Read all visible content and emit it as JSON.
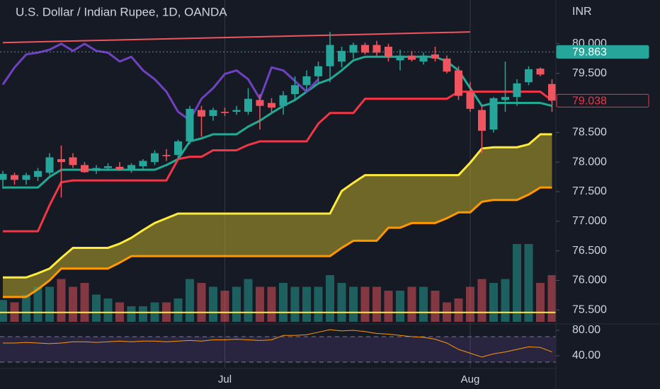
{
  "chart_data": {
    "type": "candlestick",
    "title": "U.S. Dollar / Indian Rupee, 1D, OANDA",
    "y_axis_label": "INR",
    "categories": [
      null,
      null,
      null,
      null,
      null,
      null,
      null,
      null,
      null,
      null,
      null,
      null,
      null,
      null,
      null,
      null,
      null,
      null,
      null,
      "Jul",
      null,
      null,
      null,
      null,
      null,
      null,
      null,
      null,
      null,
      null,
      null,
      null,
      null,
      null,
      null,
      null,
      null,
      null,
      null,
      null,
      "Aug",
      null,
      null,
      null,
      null,
      null,
      null,
      null
    ],
    "open": [
      77.7,
      77.78,
      77.7,
      77.75,
      77.82,
      78.05,
      78.08,
      77.95,
      77.85,
      77.9,
      77.92,
      77.88,
      77.93,
      78.0,
      78.12,
      78.12,
      78.35,
      78.88,
      78.78,
      78.85,
      78.85,
      78.85,
      79.05,
      79.0,
      78.95,
      79.15,
      79.3,
      79.45,
      79.62,
      79.7,
      79.85,
      79.98,
      79.98,
      79.95,
      79.72,
      79.8,
      79.7,
      79.82,
      79.75,
      79.55,
      79.18,
      78.88,
      78.55,
      79.05,
      79.1,
      79.35,
      79.58,
      79.32
    ],
    "high": [
      77.85,
      77.82,
      77.82,
      77.9,
      78.15,
      78.28,
      78.15,
      78.0,
      77.95,
      77.98,
      78.0,
      77.98,
      78.05,
      78.2,
      78.22,
      78.38,
      78.95,
      78.95,
      78.92,
      78.92,
      78.95,
      79.25,
      79.15,
      79.08,
      79.2,
      79.45,
      79.55,
      79.7,
      80.2,
      79.95,
      80.02,
      80.02,
      80.05,
      80.0,
      79.9,
      79.88,
      79.85,
      79.95,
      79.8,
      79.62,
      79.35,
      78.95,
      79.1,
      79.7,
      79.4,
      79.62,
      79.6,
      79.4
    ],
    "low": [
      77.55,
      77.62,
      77.62,
      77.68,
      77.78,
      77.4,
      77.9,
      77.82,
      77.8,
      77.85,
      77.85,
      77.82,
      77.88,
      77.95,
      78.02,
      78.05,
      78.3,
      78.43,
      78.7,
      78.78,
      78.8,
      78.8,
      78.55,
      78.85,
      78.8,
      79.05,
      79.2,
      79.35,
      79.35,
      79.6,
      79.75,
      79.82,
      79.8,
      79.7,
      79.55,
      79.7,
      79.65,
      79.7,
      79.5,
      79.05,
      78.85,
      78.15,
      78.5,
      78.85,
      78.95,
      79.3,
      79.45,
      78.85
    ],
    "close": [
      77.8,
      77.7,
      77.78,
      77.85,
      78.08,
      78.0,
      77.95,
      77.83,
      77.9,
      77.93,
      77.88,
      77.95,
      78.02,
      78.15,
      78.1,
      78.35,
      78.9,
      78.77,
      78.88,
      78.83,
      78.88,
      79.07,
      78.95,
      78.92,
      79.13,
      79.3,
      79.45,
      79.62,
      79.98,
      79.88,
      79.98,
      79.85,
      79.85,
      79.78,
      79.8,
      79.73,
      79.8,
      79.75,
      79.53,
      79.12,
      78.9,
      78.53,
      79.08,
      79.1,
      79.33,
      79.57,
      79.48,
      79.04
    ],
    "up_color": "#26a69a",
    "down_color": "#f0555f",
    "ylim": [
      75.3,
      80.74
    ],
    "yticks": [
      {
        "value": 80,
        "label": "80.000"
      },
      {
        "value": 79.5,
        "label": "79.500"
      },
      {
        "value": 78.5,
        "label": "78.500"
      },
      {
        "value": 78,
        "label": "78.000"
      },
      {
        "value": 77.5,
        "label": "77.500"
      },
      {
        "value": 77,
        "label": "77.000"
      },
      {
        "value": 76.5,
        "label": "76.500"
      },
      {
        "value": 76,
        "label": "76.000"
      },
      {
        "value": 75.5,
        "label": "75.500"
      }
    ],
    "series": [
      {
        "color": "#22ab94",
        "values": [
          77.57,
          77.57,
          77.57,
          77.57,
          77.75,
          77.87,
          77.87,
          77.87,
          77.87,
          77.87,
          77.87,
          77.87,
          77.87,
          77.87,
          77.95,
          78.05,
          78.35,
          78.4,
          78.47,
          78.47,
          78.47,
          78.6,
          78.7,
          78.83,
          78.95,
          79.05,
          79.19,
          79.33,
          79.4,
          79.55,
          79.72,
          79.78,
          79.78,
          79.78,
          79.78,
          79.78,
          79.78,
          79.78,
          79.7,
          79.55,
          79.25,
          78.95,
          79.0,
          79.0,
          79.0,
          79.0,
          79.0,
          78.95
        ]
      },
      {
        "color": "#f23645",
        "values": [
          76.83,
          76.83,
          76.83,
          76.83,
          77.27,
          77.66,
          77.69,
          77.69,
          77.69,
          77.69,
          77.69,
          77.69,
          77.69,
          77.69,
          77.69,
          78.05,
          78.09,
          78.09,
          78.2,
          78.2,
          78.2,
          78.29,
          78.35,
          78.35,
          78.35,
          78.35,
          78.35,
          78.65,
          78.83,
          78.83,
          78.83,
          79.07,
          79.07,
          79.07,
          79.07,
          79.07,
          79.07,
          79.07,
          79.07,
          79.19,
          79.19,
          79.19,
          79.19,
          79.19,
          79.19,
          79.19,
          79.19,
          79.04
        ]
      },
      {
        "color": "#6f42c1",
        "values": [
          79.31,
          79.6,
          79.82,
          79.85,
          79.9,
          80.0,
          79.88,
          80.0,
          79.88,
          79.85,
          79.7,
          79.78,
          79.55,
          79.4,
          79.19,
          78.85,
          78.71,
          79.07,
          79.25,
          79.49,
          79.55,
          79.4,
          79.07,
          79.6,
          79.55,
          79.37,
          79.19,
          79.4,
          null,
          null,
          null,
          null,
          null,
          null,
          null,
          null,
          null,
          null,
          null,
          null,
          null,
          null,
          null,
          null,
          null,
          null,
          null,
          null
        ]
      }
    ],
    "cloud": {
      "color": "#b8a82a",
      "upper": {
        "color": "#ffeb3b",
        "values": [
          76.05,
          76.05,
          76.05,
          76.12,
          76.2,
          76.38,
          76.55,
          76.55,
          76.55,
          76.55,
          76.62,
          76.72,
          76.85,
          76.97,
          77.05,
          77.13,
          77.13,
          77.13,
          77.13,
          77.13,
          77.13,
          77.13,
          77.13,
          77.13,
          77.13,
          77.13,
          77.13,
          77.13,
          77.13,
          77.51,
          77.65,
          77.78,
          77.78,
          77.78,
          77.78,
          77.78,
          77.78,
          77.78,
          77.78,
          77.78,
          77.99,
          78.23,
          78.25,
          78.25,
          78.25,
          78.3,
          78.47,
          78.47
        ]
      },
      "lower": {
        "color": "#ff9800",
        "values": [
          75.72,
          75.72,
          75.72,
          75.85,
          76.0,
          76.2,
          76.2,
          76.2,
          76.2,
          76.2,
          76.3,
          76.41,
          76.41,
          76.41,
          76.41,
          76.41,
          76.41,
          76.41,
          76.41,
          76.41,
          76.41,
          76.41,
          76.41,
          76.41,
          76.41,
          76.41,
          76.41,
          76.41,
          76.41,
          76.55,
          76.67,
          76.67,
          76.67,
          76.89,
          76.89,
          76.97,
          76.97,
          76.97,
          77.05,
          77.15,
          77.15,
          77.33,
          77.36,
          77.36,
          77.36,
          77.45,
          77.57,
          77.57
        ]
      }
    },
    "trendline": {
      "color": "#f0555f",
      "x": [
        0,
        40
      ],
      "values": [
        80.02,
        80.2
      ]
    },
    "price_labels": [
      {
        "value": 79.863,
        "color": "#26a69a"
      },
      {
        "value": 79.038,
        "color": "#f23645"
      }
    ],
    "volume": {
      "values": [
        28,
        25,
        35,
        45,
        45,
        55,
        45,
        50,
        35,
        30,
        25,
        20,
        20,
        25,
        25,
        30,
        55,
        50,
        45,
        40,
        45,
        55,
        45,
        45,
        50,
        45,
        45,
        45,
        60,
        50,
        45,
        45,
        45,
        40,
        40,
        45,
        45,
        40,
        25,
        30,
        45,
        55,
        50,
        55,
        100,
        100,
        50,
        60
      ],
      "ylim": [
        0,
        100
      ],
      "ma": 12,
      "ma_color": "#ffeb3b"
    },
    "rsi": {
      "color": "#ff9800",
      "values": [
        60,
        60,
        61,
        60,
        59,
        60,
        62,
        62,
        61,
        62,
        63,
        62,
        63,
        63,
        62,
        63,
        64,
        63,
        65,
        65,
        66,
        65,
        64,
        65,
        72,
        72,
        73,
        77,
        81,
        79,
        80,
        78,
        75,
        74,
        72,
        70,
        69,
        66,
        60,
        50,
        44,
        38,
        43,
        46,
        50,
        54,
        53,
        46
      ],
      "ylim": [
        21.1,
        90
      ],
      "yticks": [
        {
          "value": 80,
          "label": "80.00"
        },
        {
          "value": 40,
          "label": "40.00"
        }
      ],
      "bands": [
        70,
        30
      ]
    }
  }
}
